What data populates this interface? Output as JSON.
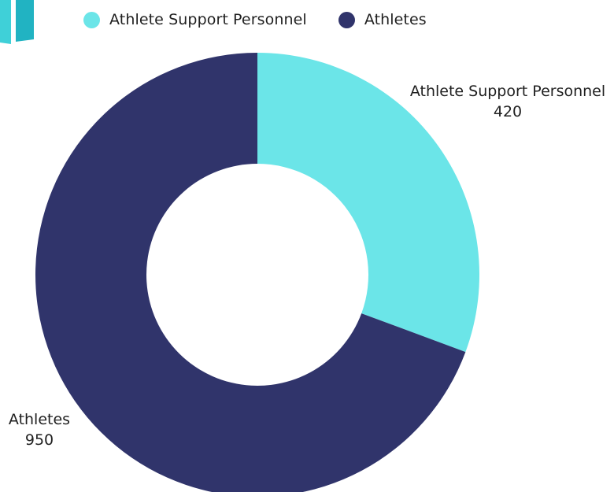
{
  "colors": {
    "athlete_support_personnel": "#6be5e8",
    "athletes": "#30346b",
    "decor_light": "#3fd0d8",
    "decor_dark": "#21b3c2"
  },
  "legend": {
    "items": [
      {
        "label": "Athlete Support Personnel"
      },
      {
        "label": "Athletes"
      }
    ]
  },
  "chart_data": {
    "type": "pie",
    "variant": "donut",
    "title": "",
    "categories": [
      "Athlete Support Personnel",
      "Athletes"
    ],
    "values": [
      420,
      950
    ],
    "value_labels": [
      "420",
      "950"
    ],
    "legend_position": "top"
  }
}
